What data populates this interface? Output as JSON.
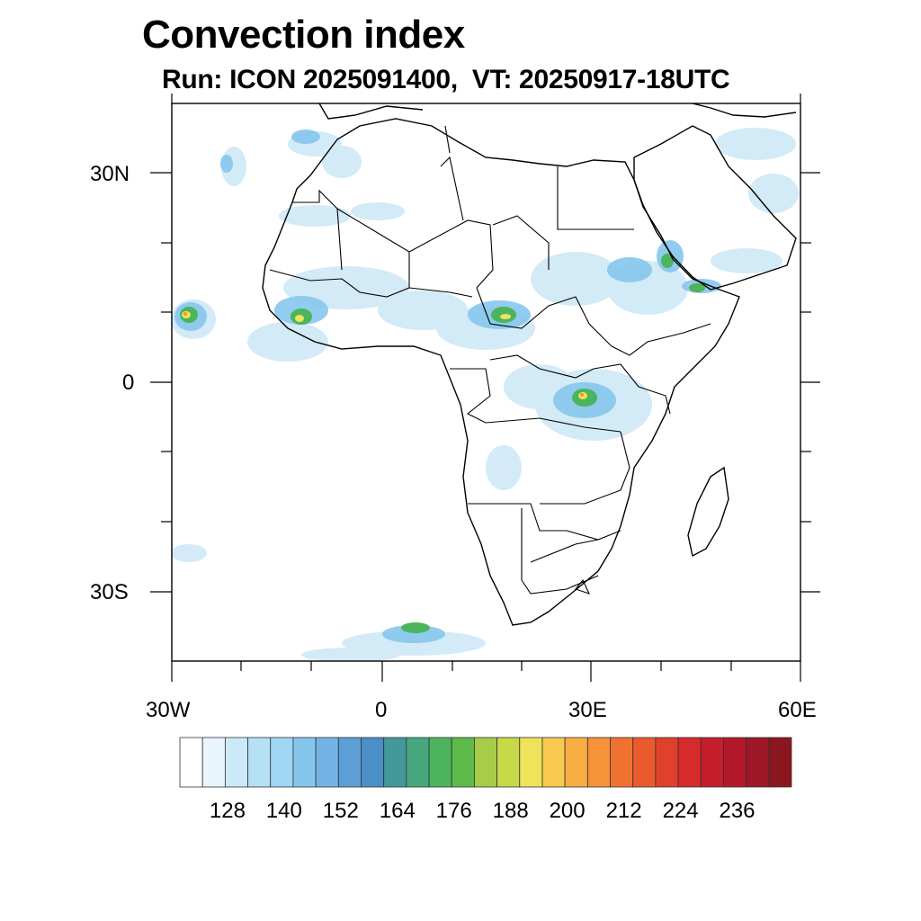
{
  "title": "Convection index",
  "subtitle": "Run: ICON 2025091400,  VT: 20250917-18UTC",
  "axes": {
    "lat_labels": [
      "30N",
      "0",
      "30S"
    ],
    "lon_labels": [
      "30W",
      "0",
      "30E",
      "60E"
    ]
  },
  "colorbar": {
    "labels": [
      "128",
      "140",
      "152",
      "164",
      "176",
      "188",
      "200",
      "212",
      "224",
      "236"
    ],
    "colors": [
      "#ffffff",
      "#e8f5fc",
      "#cce9f8",
      "#b5e0f6",
      "#9fd6f4",
      "#86c6ec",
      "#72b3e4",
      "#5b9fd6",
      "#4a8fc6",
      "#43989a",
      "#47a77e",
      "#4bb45c",
      "#5dba4a",
      "#a7cc49",
      "#c7d849",
      "#eee35a",
      "#f8c94f",
      "#f8ae43",
      "#f6923a",
      "#f17131",
      "#ea5a2c",
      "#e1402a",
      "#d62a2b",
      "#c61d2b",
      "#b3182a",
      "#9e1726",
      "#8a1620"
    ]
  }
}
